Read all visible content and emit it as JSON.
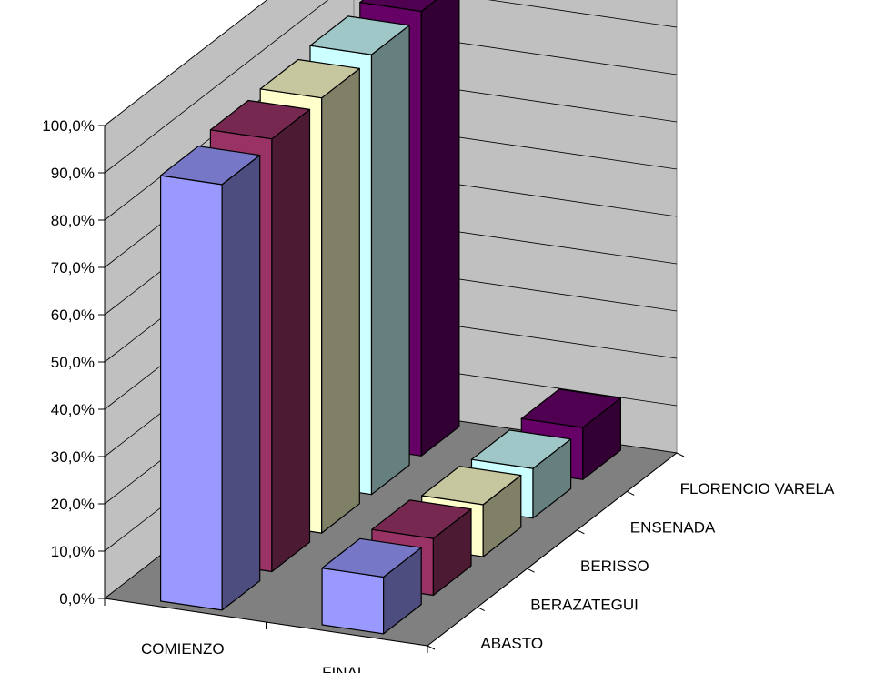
{
  "chart_data": {
    "type": "bar",
    "categories": [
      "COMIENZO",
      "FINAL"
    ],
    "series": [
      {
        "name": "ABASTO",
        "values": [
          90.0,
          12.0
        ],
        "color": "#9999FF"
      },
      {
        "name": "BERAZATEGUI",
        "values": [
          91.5,
          12.0
        ],
        "color": "#993366"
      },
      {
        "name": "BERISSO",
        "values": [
          92.0,
          11.0
        ],
        "color": "#FFFFCC"
      },
      {
        "name": "ENSENADA",
        "values": [
          93.0,
          10.5
        ],
        "color": "#CCFFFF"
      },
      {
        "name": "FLORENCIO VARELA",
        "values": [
          94.0,
          11.0
        ],
        "color": "#660066"
      }
    ],
    "y_ticks": [
      "0,0%",
      "10,0%",
      "20,0%",
      "30,0%",
      "40,0%",
      "50,0%",
      "60,0%",
      "70,0%",
      "80,0%",
      "90,0%",
      "100,0%"
    ],
    "ylim": [
      0,
      100
    ],
    "grid": true,
    "projection": "3d"
  }
}
